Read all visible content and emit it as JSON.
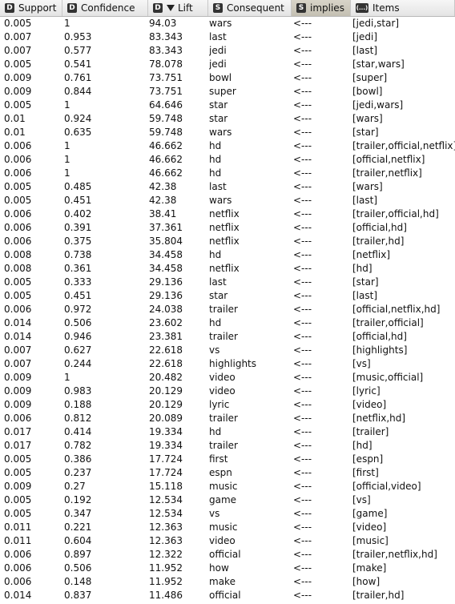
{
  "columns": [
    {
      "key": "support",
      "type_icon": "D",
      "label": "Support"
    },
    {
      "key": "confidence",
      "type_icon": "D",
      "label": "Confidence"
    },
    {
      "key": "lift",
      "type_icon": "D",
      "label": "Lift",
      "sorted": "descending"
    },
    {
      "key": "consequent",
      "type_icon": "S",
      "label": "Consequent"
    },
    {
      "key": "implies",
      "type_icon": "S",
      "label": "implies"
    },
    {
      "key": "items",
      "type_icon": "(...)",
      "label": "Items"
    }
  ],
  "rows": [
    {
      "support": "0.005",
      "confidence": "1",
      "lift": "94.03",
      "consequent": "wars",
      "implies": "<---",
      "items": "[jedi,star]"
    },
    {
      "support": "0.007",
      "confidence": "0.953",
      "lift": "83.343",
      "consequent": "last",
      "implies": "<---",
      "items": "[jedi]"
    },
    {
      "support": "0.007",
      "confidence": "0.577",
      "lift": "83.343",
      "consequent": "jedi",
      "implies": "<---",
      "items": "[last]"
    },
    {
      "support": "0.005",
      "confidence": "0.541",
      "lift": "78.078",
      "consequent": "jedi",
      "implies": "<---",
      "items": "[star,wars]"
    },
    {
      "support": "0.009",
      "confidence": "0.761",
      "lift": "73.751",
      "consequent": "bowl",
      "implies": "<---",
      "items": "[super]"
    },
    {
      "support": "0.009",
      "confidence": "0.844",
      "lift": "73.751",
      "consequent": "super",
      "implies": "<---",
      "items": "[bowl]"
    },
    {
      "support": "0.005",
      "confidence": "1",
      "lift": "64.646",
      "consequent": "star",
      "implies": "<---",
      "items": "[jedi,wars]"
    },
    {
      "support": "0.01",
      "confidence": "0.924",
      "lift": "59.748",
      "consequent": "star",
      "implies": "<---",
      "items": "[wars]"
    },
    {
      "support": "0.01",
      "confidence": "0.635",
      "lift": "59.748",
      "consequent": "wars",
      "implies": "<---",
      "items": "[star]"
    },
    {
      "support": "0.006",
      "confidence": "1",
      "lift": "46.662",
      "consequent": "hd",
      "implies": "<---",
      "items": "[trailer,official,netflix]"
    },
    {
      "support": "0.006",
      "confidence": "1",
      "lift": "46.662",
      "consequent": "hd",
      "implies": "<---",
      "items": "[official,netflix]"
    },
    {
      "support": "0.006",
      "confidence": "1",
      "lift": "46.662",
      "consequent": "hd",
      "implies": "<---",
      "items": "[trailer,netflix]"
    },
    {
      "support": "0.005",
      "confidence": "0.485",
      "lift": "42.38",
      "consequent": "last",
      "implies": "<---",
      "items": "[wars]"
    },
    {
      "support": "0.005",
      "confidence": "0.451",
      "lift": "42.38",
      "consequent": "wars",
      "implies": "<---",
      "items": "[last]"
    },
    {
      "support": "0.006",
      "confidence": "0.402",
      "lift": "38.41",
      "consequent": "netflix",
      "implies": "<---",
      "items": "[trailer,official,hd]"
    },
    {
      "support": "0.006",
      "confidence": "0.391",
      "lift": "37.361",
      "consequent": "netflix",
      "implies": "<---",
      "items": "[official,hd]"
    },
    {
      "support": "0.006",
      "confidence": "0.375",
      "lift": "35.804",
      "consequent": "netflix",
      "implies": "<---",
      "items": "[trailer,hd]"
    },
    {
      "support": "0.008",
      "confidence": "0.738",
      "lift": "34.458",
      "consequent": "hd",
      "implies": "<---",
      "items": "[netflix]"
    },
    {
      "support": "0.008",
      "confidence": "0.361",
      "lift": "34.458",
      "consequent": "netflix",
      "implies": "<---",
      "items": "[hd]"
    },
    {
      "support": "0.005",
      "confidence": "0.333",
      "lift": "29.136",
      "consequent": "last",
      "implies": "<---",
      "items": "[star]"
    },
    {
      "support": "0.005",
      "confidence": "0.451",
      "lift": "29.136",
      "consequent": "star",
      "implies": "<---",
      "items": "[last]"
    },
    {
      "support": "0.006",
      "confidence": "0.972",
      "lift": "24.038",
      "consequent": "trailer",
      "implies": "<---",
      "items": "[official,netflix,hd]"
    },
    {
      "support": "0.014",
      "confidence": "0.506",
      "lift": "23.602",
      "consequent": "hd",
      "implies": "<---",
      "items": "[trailer,official]"
    },
    {
      "support": "0.014",
      "confidence": "0.946",
      "lift": "23.381",
      "consequent": "trailer",
      "implies": "<---",
      "items": "[official,hd]"
    },
    {
      "support": "0.007",
      "confidence": "0.627",
      "lift": "22.618",
      "consequent": "vs",
      "implies": "<---",
      "items": "[highlights]"
    },
    {
      "support": "0.007",
      "confidence": "0.244",
      "lift": "22.618",
      "consequent": "highlights",
      "implies": "<---",
      "items": "[vs]"
    },
    {
      "support": "0.009",
      "confidence": "1",
      "lift": "20.482",
      "consequent": "video",
      "implies": "<---",
      "items": "[music,official]"
    },
    {
      "support": "0.009",
      "confidence": "0.983",
      "lift": "20.129",
      "consequent": "video",
      "implies": "<---",
      "items": "[lyric]"
    },
    {
      "support": "0.009",
      "confidence": "0.188",
      "lift": "20.129",
      "consequent": "lyric",
      "implies": "<---",
      "items": "[video]"
    },
    {
      "support": "0.006",
      "confidence": "0.812",
      "lift": "20.089",
      "consequent": "trailer",
      "implies": "<---",
      "items": "[netflix,hd]"
    },
    {
      "support": "0.017",
      "confidence": "0.414",
      "lift": "19.334",
      "consequent": "hd",
      "implies": "<---",
      "items": "[trailer]"
    },
    {
      "support": "0.017",
      "confidence": "0.782",
      "lift": "19.334",
      "consequent": "trailer",
      "implies": "<---",
      "items": "[hd]"
    },
    {
      "support": "0.005",
      "confidence": "0.386",
      "lift": "17.724",
      "consequent": "first",
      "implies": "<---",
      "items": "[espn]"
    },
    {
      "support": "0.005",
      "confidence": "0.237",
      "lift": "17.724",
      "consequent": "espn",
      "implies": "<---",
      "items": "[first]"
    },
    {
      "support": "0.009",
      "confidence": "0.27",
      "lift": "15.118",
      "consequent": "music",
      "implies": "<---",
      "items": "[official,video]"
    },
    {
      "support": "0.005",
      "confidence": "0.192",
      "lift": "12.534",
      "consequent": "game",
      "implies": "<---",
      "items": "[vs]"
    },
    {
      "support": "0.005",
      "confidence": "0.347",
      "lift": "12.534",
      "consequent": "vs",
      "implies": "<---",
      "items": "[game]"
    },
    {
      "support": "0.011",
      "confidence": "0.221",
      "lift": "12.363",
      "consequent": "music",
      "implies": "<---",
      "items": "[video]"
    },
    {
      "support": "0.011",
      "confidence": "0.604",
      "lift": "12.363",
      "consequent": "video",
      "implies": "<---",
      "items": "[music]"
    },
    {
      "support": "0.006",
      "confidence": "0.897",
      "lift": "12.322",
      "consequent": "official",
      "implies": "<---",
      "items": "[trailer,netflix,hd]"
    },
    {
      "support": "0.006",
      "confidence": "0.506",
      "lift": "11.952",
      "consequent": "how",
      "implies": "<---",
      "items": "[make]"
    },
    {
      "support": "0.006",
      "confidence": "0.148",
      "lift": "11.952",
      "consequent": "make",
      "implies": "<---",
      "items": "[how]"
    },
    {
      "support": "0.014",
      "confidence": "0.837",
      "lift": "11.486",
      "consequent": "official",
      "implies": "<---",
      "items": "[trailer,hd]"
    }
  ]
}
